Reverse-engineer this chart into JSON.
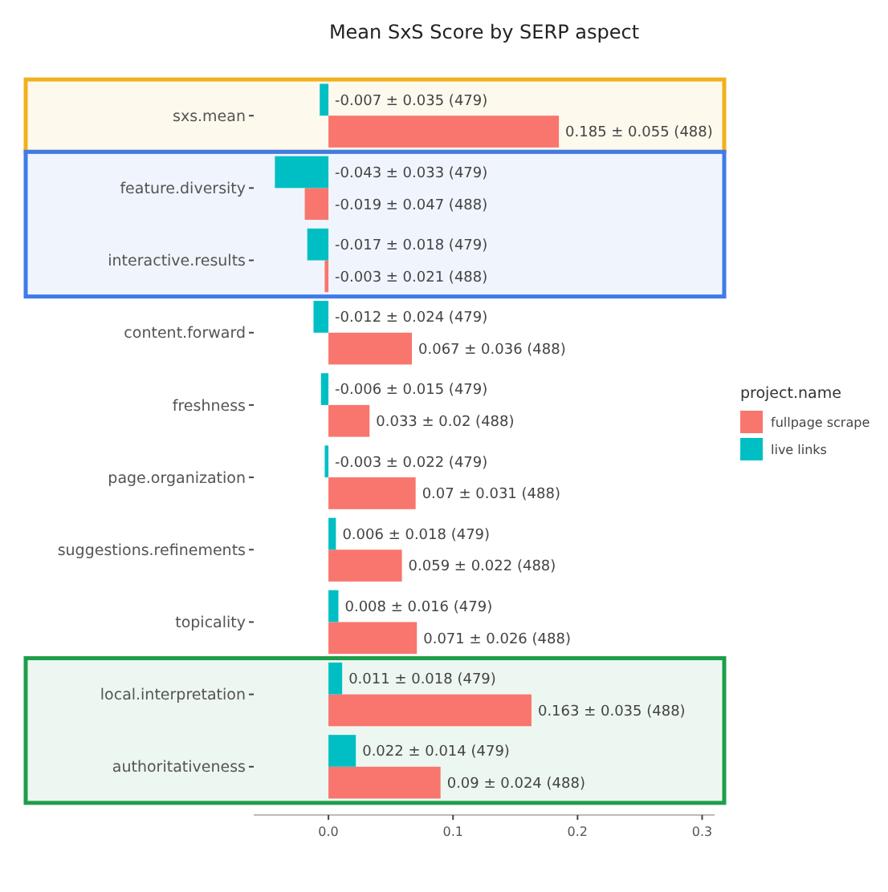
{
  "chart_data": {
    "type": "bar",
    "orientation": "horizontal",
    "title": "Mean SxS Score by SERP aspect",
    "legend_title": "project.name",
    "legend": "right",
    "categories": [
      "sxs.mean",
      "feature.diversity",
      "interactive.results",
      "content.forward",
      "freshness",
      "page.organization",
      "suggestions.refinements",
      "topicality",
      "local.interpretation",
      "authoritativeness"
    ],
    "series": [
      {
        "name": "fullpage scrape",
        "color": "#f8766d",
        "values": [
          0.185,
          -0.019,
          -0.003,
          0.067,
          0.033,
          0.07,
          0.059,
          0.071,
          0.163,
          0.09
        ],
        "value_labels": [
          "0.185 ± 0.055 (488)",
          "-0.019 ± 0.047 (488)",
          "-0.003 ± 0.021 (488)",
          "0.067 ± 0.036 (488)",
          "0.033 ± 0.02 (488)",
          "0.07 ± 0.031 (488)",
          "0.059 ± 0.022 (488)",
          "0.071 ± 0.026 (488)",
          "0.163 ± 0.035 (488)",
          "0.09 ± 0.024 (488)"
        ]
      },
      {
        "name": "live links",
        "color": "#00bfc4",
        "values": [
          -0.007,
          -0.043,
          -0.017,
          -0.012,
          -0.006,
          -0.003,
          0.006,
          0.008,
          0.011,
          0.022
        ],
        "value_labels": [
          "-0.007 ± 0.035 (479)",
          "-0.043 ± 0.033 (479)",
          "-0.017 ± 0.018 (479)",
          "-0.012 ± 0.024 (479)",
          "-0.006 ± 0.015 (479)",
          "-0.003 ± 0.022 (479)",
          "0.006 ± 0.018 (479)",
          "0.008 ± 0.016 (479)",
          "0.011 ± 0.018 (479)",
          "0.022 ± 0.014 (479)"
        ]
      }
    ],
    "xlim": [
      -0.06,
      0.31
    ],
    "xticks": [
      {
        "value": 0,
        "label": "0.0"
      },
      0.1,
      0.2,
      0.3
    ],
    "grid": false,
    "bands": [
      {
        "axis": "y",
        "from": "sxs.mean",
        "to": "sxs.mean",
        "color": "#f2b01e"
      },
      {
        "axis": "y",
        "from": "feature.diversity",
        "to": "interactive.results",
        "color": "#3f7be8"
      },
      {
        "axis": "y",
        "from": "local.interpretation",
        "to": "authoritativeness",
        "color": "#1e9e4a"
      }
    ]
  }
}
